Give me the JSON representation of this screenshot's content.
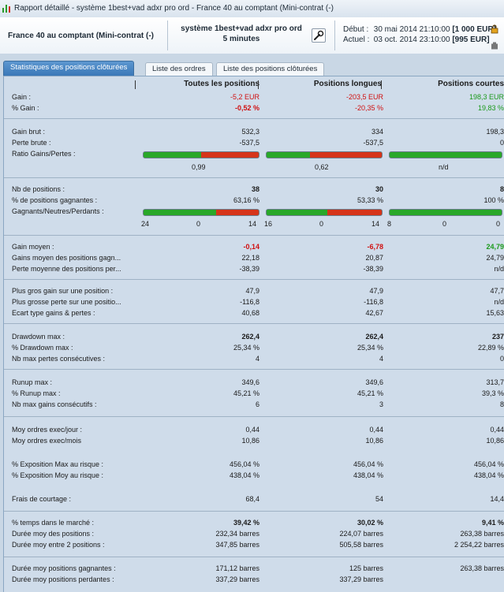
{
  "window": {
    "title": "Rapport détaillé - système 1best+vad adxr pro ord - France 40 au comptant (Mini-contrat  (-)"
  },
  "header": {
    "instrument": "France 40 au comptant (Mini-contrat  (-)",
    "system_line1": "système 1best+vad adxr pro ord",
    "system_line2": "5 minutes",
    "debut_label": "Début :",
    "debut_value": "30 mai 2014 21:10:00",
    "debut_amount": "[1 000 EUR]",
    "actuel_label": "Actuel :",
    "actuel_value": "03 oct. 2014 23:10:00",
    "actuel_amount": "[995 EUR]"
  },
  "tabs": [
    {
      "label": "Statistiques des positions clôturées",
      "active": true
    },
    {
      "label": "Liste des ordres",
      "active": false
    },
    {
      "label": "Liste des positions clôturées",
      "active": false
    }
  ],
  "columns": [
    "Toutes les positions",
    "Positions longues",
    "Positions courtes"
  ],
  "rows": {
    "gain": {
      "label": "Gain :",
      "v": [
        "-5,2 EUR",
        "-203,5 EUR",
        "198,3 EUR"
      ]
    },
    "pct_gain": {
      "label": "% Gain :",
      "v": [
        "-0,52 %",
        "-20,35 %",
        "19,83 %"
      ]
    },
    "gain_brut": {
      "label": "Gain brut :",
      "v": [
        "532,3",
        "334",
        "198,3"
      ]
    },
    "perte_brute": {
      "label": "Perte brute :",
      "v": [
        "-537,5",
        "-537,5",
        "0"
      ]
    },
    "ratio": {
      "label": "Ratio Gains/Pertes :",
      "v": [
        "0,99",
        "0,62",
        "n/d"
      ]
    },
    "nb_pos": {
      "label": "Nb de positions :",
      "v": [
        "38",
        "30",
        "8"
      ]
    },
    "pct_gagnantes": {
      "label": "% de positions gagnantes :",
      "v": [
        "63,16 %",
        "53,33 %",
        "100 %"
      ]
    },
    "gnp": {
      "label": "Gagnants/Neutres/Perdants :",
      "v": [
        [
          "24",
          "0",
          "14"
        ],
        [
          "16",
          "0",
          "14"
        ],
        [
          "8",
          "0",
          "0"
        ]
      ]
    },
    "gain_moyen": {
      "label": "Gain moyen :",
      "v": [
        "-0,14",
        "-6,78",
        "24,79"
      ]
    },
    "gains_moy_gagn": {
      "label": "Gains moyen des positions gagn...",
      "v": [
        "22,18",
        "20,87",
        "24,79"
      ]
    },
    "perte_moy": {
      "label": "Perte moyenne des positions per...",
      "v": [
        "-38,39",
        "-38,39",
        "n/d"
      ]
    },
    "plus_gros_gain": {
      "label": "Plus gros gain sur une position :",
      "v": [
        "47,9",
        "47,9",
        "47,7"
      ]
    },
    "plus_grosse_perte": {
      "label": "Plus grosse perte sur une positio...",
      "v": [
        "-116,8",
        "-116,8",
        "n/d"
      ]
    },
    "ecart_type": {
      "label": "Ecart type gains & pertes :",
      "v": [
        "40,68",
        "42,67",
        "15,63"
      ]
    },
    "drawdown": {
      "label": "Drawdown max :",
      "v": [
        "262,4",
        "262,4",
        "237"
      ]
    },
    "pct_drawdown": {
      "label": "% Drawdown max :",
      "v": [
        "25,34 %",
        "25,34 %",
        "22,89 %"
      ]
    },
    "nb_pertes": {
      "label": "Nb max pertes consécutives :",
      "v": [
        "4",
        "4",
        "0"
      ]
    },
    "runup": {
      "label": "Runup max :",
      "v": [
        "349,6",
        "349,6",
        "313,7"
      ]
    },
    "pct_runup": {
      "label": "% Runup max :",
      "v": [
        "45,21 %",
        "45,21 %",
        "39,3 %"
      ]
    },
    "nb_gains": {
      "label": "Nb max gains consécutifs :",
      "v": [
        "6",
        "3",
        "8"
      ]
    },
    "ordres_jour": {
      "label": "Moy ordres exec/jour :",
      "v": [
        "0,44",
        "0,44",
        "0,44"
      ]
    },
    "ordres_mois": {
      "label": "Moy ordres exec/mois",
      "v": [
        "10,86",
        "10,86",
        "10,86"
      ]
    },
    "expo_max": {
      "label": "% Exposition Max au risque :",
      "v": [
        "456,04 %",
        "456,04 %",
        "456,04 %"
      ]
    },
    "expo_moy": {
      "label": "% Exposition Moy au risque :",
      "v": [
        "438,04 %",
        "438,04 %",
        "438,04 %"
      ]
    },
    "frais": {
      "label": "Frais de courtage :",
      "v": [
        "68,4",
        "54",
        "14,4"
      ]
    },
    "temps_marche": {
      "label": "% temps dans le marché :",
      "v": [
        "39,42 %",
        "30,02 %",
        "9,41 %"
      ]
    },
    "duree_moy": {
      "label": "Durée moy des positions :",
      "v": [
        "232,34 barres",
        "224,07 barres",
        "263,38 barres"
      ]
    },
    "duree_entre": {
      "label": "Durée moy entre 2 positions :",
      "v": [
        "347,85 barres",
        "505,58 barres",
        "2 254,22 barres"
      ]
    },
    "duree_gagn": {
      "label": "Durée moy positions gagnantes :",
      "v": [
        "171,12 barres",
        "125 barres",
        "263,38 barres"
      ]
    },
    "duree_perd": {
      "label": "Durée moy positions perdantes :",
      "v": [
        "337,29 barres",
        "337,29 barres",
        ""
      ]
    }
  },
  "bars": {
    "ratio_green_fraction": [
      0.5,
      0.38,
      1.0
    ],
    "gnp_green_fraction": [
      0.63,
      0.53,
      1.0
    ]
  },
  "colors": {
    "accent": "#3a78b8",
    "gain": "#1b9a1b",
    "loss": "#d01010",
    "bar_green": "#29a829",
    "bar_red": "#d6341a"
  }
}
